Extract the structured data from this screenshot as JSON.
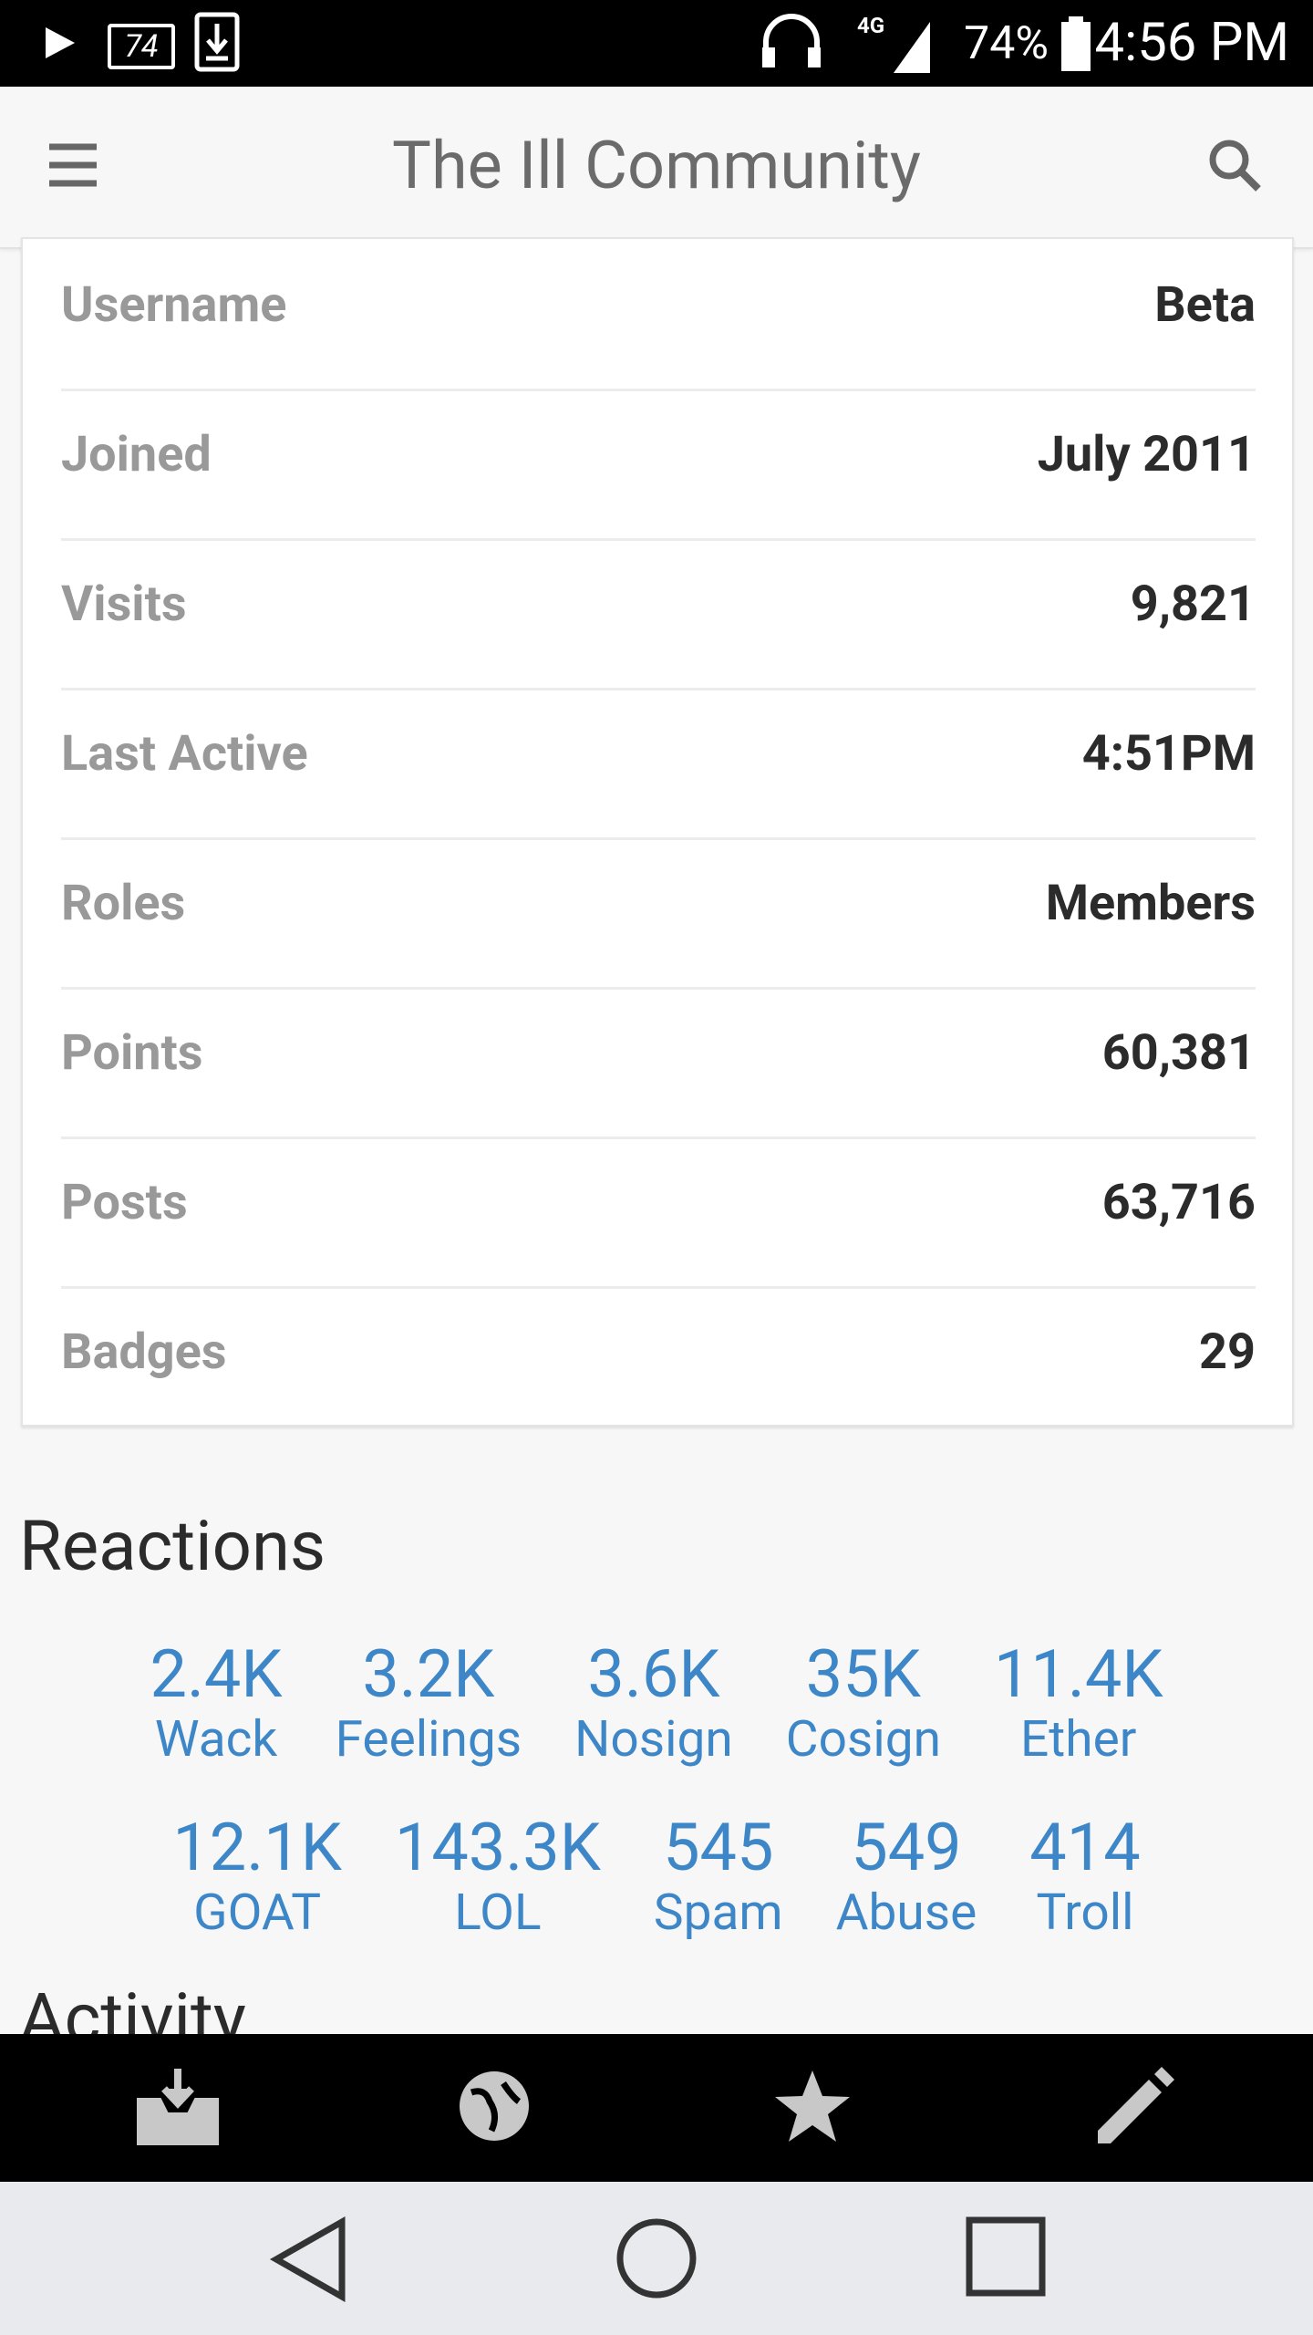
{
  "status": {
    "notification_badge": "74",
    "battery": "74%",
    "time": "4:56 PM"
  },
  "header": {
    "title": "The Ill Community"
  },
  "profile": {
    "rows": [
      {
        "label": "Username",
        "value": "Beta"
      },
      {
        "label": "Joined",
        "value": "July 2011"
      },
      {
        "label": "Visits",
        "value": "9,821"
      },
      {
        "label": "Last Active",
        "value": "4:51PM"
      },
      {
        "label": "Roles",
        "value": "Members"
      },
      {
        "label": "Points",
        "value": "60,381"
      },
      {
        "label": "Posts",
        "value": "63,716"
      },
      {
        "label": "Badges",
        "value": "29"
      }
    ]
  },
  "reactions": {
    "title": "Reactions",
    "rows": [
      [
        {
          "count": "2.4K",
          "name": "Wack"
        },
        {
          "count": "3.2K",
          "name": "Feelings"
        },
        {
          "count": "3.6K",
          "name": "Nosign"
        },
        {
          "count": "35K",
          "name": "Cosign"
        },
        {
          "count": "11.4K",
          "name": "Ether"
        }
      ],
      [
        {
          "count": "12.1K",
          "name": "GOAT"
        },
        {
          "count": "143.3K",
          "name": "LOL"
        },
        {
          "count": "545",
          "name": "Spam"
        },
        {
          "count": "549",
          "name": "Abuse"
        },
        {
          "count": "414",
          "name": "Troll"
        }
      ]
    ]
  },
  "activity": {
    "title": "Activity"
  }
}
